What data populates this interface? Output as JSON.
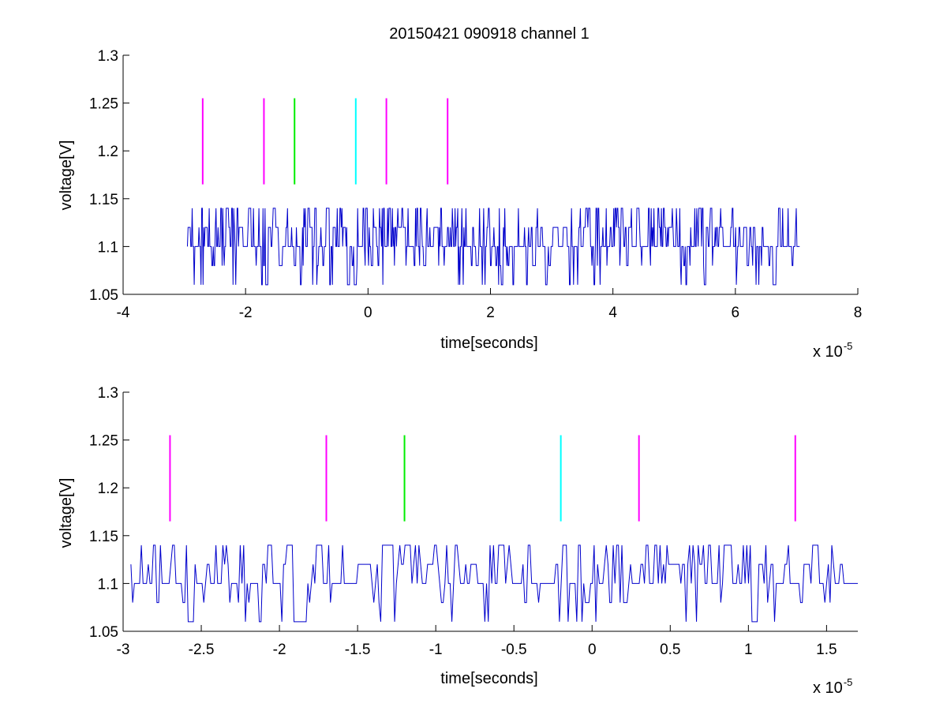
{
  "figure": {
    "title": "20150421 090918 channel 1"
  },
  "colors": {
    "signal": "#0000cc",
    "magenta": "#ff00ff",
    "green": "#00ee00",
    "cyan": "#00ffff"
  },
  "chart_data": [
    {
      "type": "line",
      "title": "20150421 090918 channel 1",
      "xlabel": "time[seconds]",
      "ylabel": "voltage[V]",
      "x_multiplier": "x 10",
      "x_multiplier_exp": "-5",
      "xlim": [
        -4,
        8
      ],
      "ylim": [
        1.05,
        1.3
      ],
      "xticks": [
        -4,
        -2,
        0,
        2,
        4,
        6,
        8
      ],
      "xtick_labels": [
        "-4",
        "-2",
        "0",
        "2",
        "4",
        "6",
        "8"
      ],
      "yticks": [
        1.05,
        1.1,
        1.15,
        1.2,
        1.25,
        1.3
      ],
      "ytick_labels": [
        "1.05",
        "1.1",
        "1.15",
        "1.2",
        "1.25",
        "1.3"
      ],
      "grid": false,
      "signal": {
        "x_start": -2.95,
        "x_end": 7.05,
        "levels": [
          1.06,
          1.08,
          1.1,
          1.12,
          1.14
        ],
        "baseline": 1.1
      },
      "markers": [
        {
          "x": -2.7,
          "y0": 1.165,
          "y1": 1.255,
          "color": "magenta"
        },
        {
          "x": -1.7,
          "y0": 1.165,
          "y1": 1.255,
          "color": "magenta"
        },
        {
          "x": -1.2,
          "y0": 1.165,
          "y1": 1.255,
          "color": "green"
        },
        {
          "x": -0.2,
          "y0": 1.165,
          "y1": 1.255,
          "color": "cyan"
        },
        {
          "x": 0.3,
          "y0": 1.165,
          "y1": 1.255,
          "color": "magenta"
        },
        {
          "x": 1.3,
          "y0": 1.165,
          "y1": 1.255,
          "color": "magenta"
        }
      ]
    },
    {
      "type": "line",
      "title": "",
      "xlabel": "time[seconds]",
      "ylabel": "voltage[V]",
      "x_multiplier": "x 10",
      "x_multiplier_exp": "-5",
      "xlim": [
        -3,
        1.7
      ],
      "ylim": [
        1.05,
        1.3
      ],
      "xticks": [
        -3,
        -2.5,
        -2,
        -1.5,
        -1,
        -0.5,
        0,
        0.5,
        1,
        1.5
      ],
      "xtick_labels": [
        "-3",
        "-2.5",
        "-2",
        "-1.5",
        "-1",
        "-0.5",
        "0",
        "0.5",
        "1",
        "1.5"
      ],
      "yticks": [
        1.05,
        1.1,
        1.15,
        1.2,
        1.25,
        1.3
      ],
      "ytick_labels": [
        "1.05",
        "1.1",
        "1.15",
        "1.2",
        "1.25",
        "1.3"
      ],
      "grid": false,
      "signal": {
        "x_start": -2.95,
        "x_end": 1.7,
        "levels": [
          1.06,
          1.08,
          1.1,
          1.12,
          1.14
        ],
        "baseline": 1.1
      },
      "markers": [
        {
          "x": -2.7,
          "y0": 1.165,
          "y1": 1.255,
          "color": "magenta"
        },
        {
          "x": -1.7,
          "y0": 1.165,
          "y1": 1.255,
          "color": "magenta"
        },
        {
          "x": -1.2,
          "y0": 1.165,
          "y1": 1.255,
          "color": "green"
        },
        {
          "x": -0.2,
          "y0": 1.165,
          "y1": 1.255,
          "color": "cyan"
        },
        {
          "x": 0.3,
          "y0": 1.165,
          "y1": 1.255,
          "color": "magenta"
        },
        {
          "x": 1.3,
          "y0": 1.165,
          "y1": 1.255,
          "color": "magenta"
        }
      ]
    }
  ]
}
